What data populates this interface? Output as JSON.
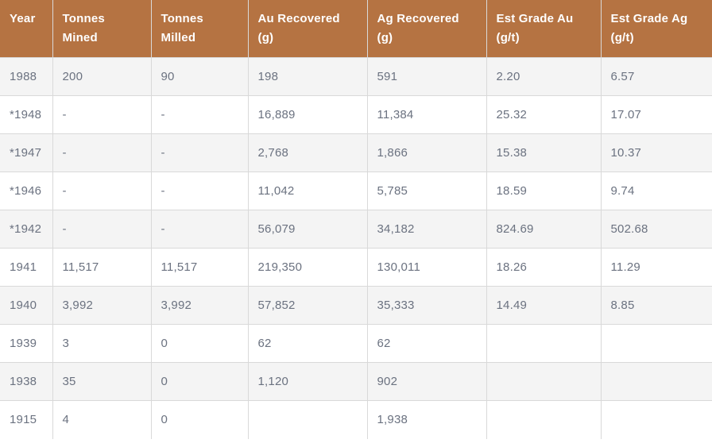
{
  "chart_data": {
    "type": "table",
    "columns": [
      "Year",
      "Tonnes Mined",
      "Tonnes Milled",
      "Au Recovered (g)",
      "Ag Recovered (g)",
      "Est Grade Au (g/t)",
      "Est Grade Ag (g/t)"
    ],
    "rows": [
      [
        "1988",
        "200",
        "90",
        "198",
        "591",
        "2.20",
        "6.57"
      ],
      [
        "*1948",
        "-",
        "-",
        "16,889",
        "11,384",
        "25.32",
        "17.07"
      ],
      [
        "*1947",
        "-",
        "-",
        "2,768",
        "1,866",
        "15.38",
        "10.37"
      ],
      [
        "*1946",
        "-",
        "-",
        "11,042",
        "5,785",
        "18.59",
        "9.74"
      ],
      [
        "*1942",
        "-",
        "-",
        "56,079",
        "34,182",
        "824.69",
        "502.68"
      ],
      [
        "1941",
        "11,517",
        "11,517",
        "219,350",
        "130,011",
        "18.26",
        "11.29"
      ],
      [
        "1940",
        "3,992",
        "3,992",
        "57,852",
        "35,333",
        "14.49",
        "8.85"
      ],
      [
        "1939",
        "3",
        "0",
        "62",
        "62",
        "",
        ""
      ],
      [
        "1938",
        "35",
        "0",
        "1,120",
        "902",
        "",
        ""
      ],
      [
        "1915",
        "4",
        "0",
        "",
        "1,938",
        "",
        ""
      ]
    ]
  },
  "colors": {
    "header_bg": "#b57342",
    "header_text": "#ffffff",
    "row_alt_bg": "#f4f4f4",
    "row_bg": "#ffffff",
    "border": "#d9d9d9",
    "cell_text": "#6b7280"
  }
}
